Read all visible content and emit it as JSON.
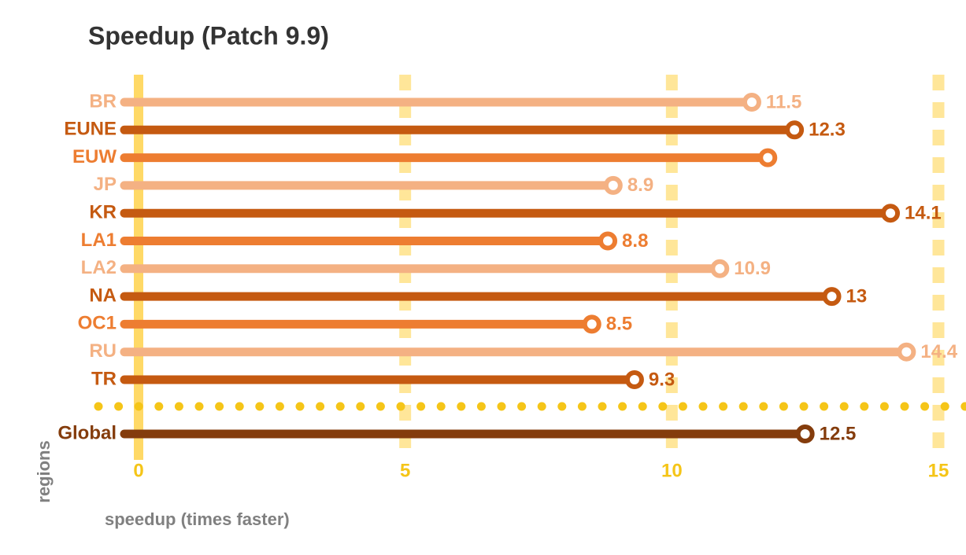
{
  "chart_data": {
    "type": "lollipop",
    "title": "Speedup (Patch 9.9)",
    "x_label": "speedup (times faster)",
    "y_label": "regions",
    "categories": [
      "BR",
      "EUNE",
      "EUW",
      "JP",
      "KR",
      "LA1",
      "LA2",
      "NA",
      "OC1",
      "RU",
      "TR",
      "Global"
    ],
    "values": [
      11.5,
      12.3,
      11.8,
      8.9,
      14.1,
      8.8,
      10.9,
      13,
      8.5,
      14.4,
      9.3,
      12.5
    ],
    "value_labels": [
      "11.5",
      "12.3",
      null,
      "8.9",
      "14.1",
      "8.8",
      "10.9",
      "13",
      "8.5",
      "14.4",
      "9.3",
      "12.5"
    ],
    "colors": [
      "#f4b183",
      "#c55a11",
      "#ed7d31",
      "#f4b183",
      "#c55a11",
      "#ed7d31",
      "#f4b183",
      "#c55a11",
      "#ed7d31",
      "#f4b183",
      "#c55a11",
      "#843c0c"
    ],
    "xlim": [
      0,
      15
    ],
    "xticks": [
      0,
      5,
      10,
      15
    ],
    "grid": true
  }
}
